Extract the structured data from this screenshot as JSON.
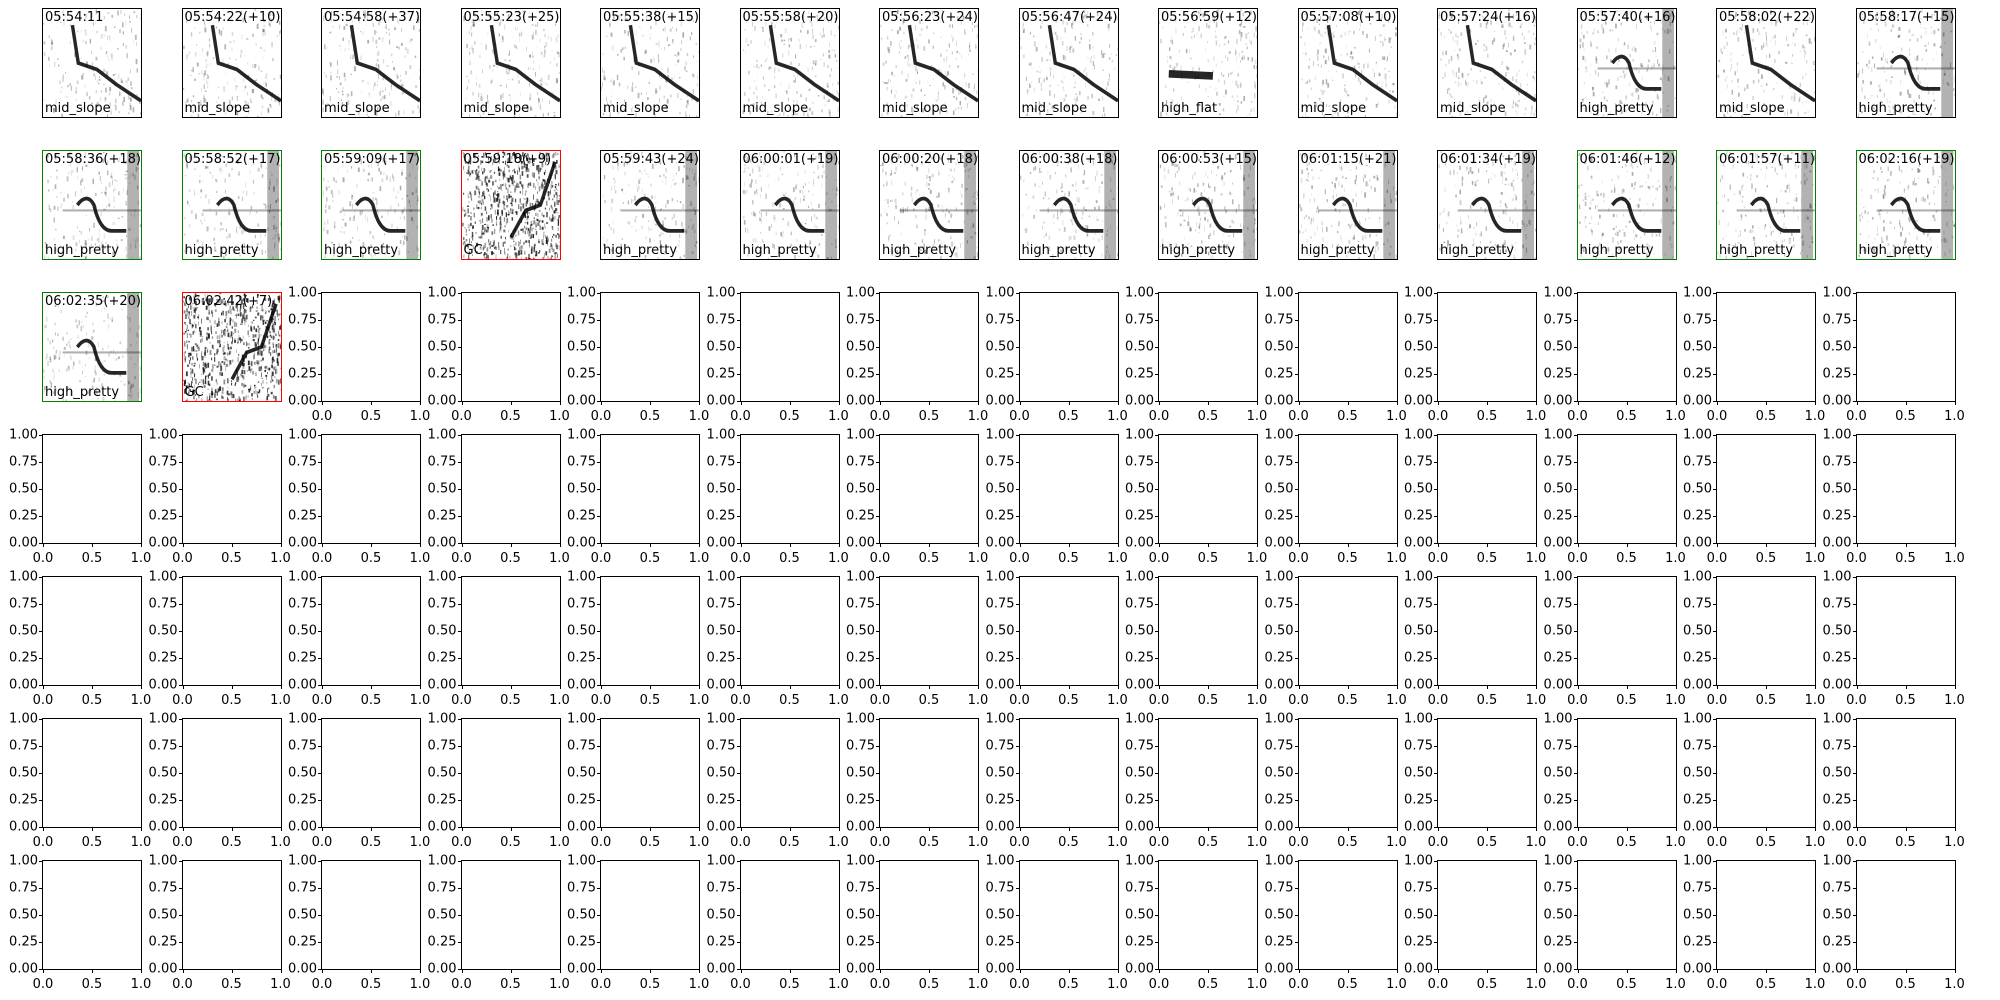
{
  "chart_data": {
    "type": "image-grid",
    "grid": {
      "rows": 7,
      "cols": 14
    },
    "border_colors": {
      "default": "#000000",
      "green": "#008000",
      "red": "#ff0000"
    },
    "panels": [
      {
        "time": "05:54:11",
        "label": "mid_slope",
        "border": "default"
      },
      {
        "time": "05:54:22(+10)",
        "label": "mid_slope",
        "border": "default"
      },
      {
        "time": "05:54:58(+37)",
        "label": "mid_slope",
        "border": "default"
      },
      {
        "time": "05:55:23(+25)",
        "label": "mid_slope",
        "border": "default"
      },
      {
        "time": "05:55:38(+15)",
        "label": "mid_slope",
        "border": "default"
      },
      {
        "time": "05:55:58(+20)",
        "label": "mid_slope",
        "border": "default"
      },
      {
        "time": "05:56:23(+24)",
        "label": "mid_slope",
        "border": "default"
      },
      {
        "time": "05:56:47(+24)",
        "label": "mid_slope",
        "border": "default"
      },
      {
        "time": "05:56:59(+12)",
        "label": "high_flat",
        "border": "default"
      },
      {
        "time": "05:57:08(+10)",
        "label": "mid_slope",
        "border": "default"
      },
      {
        "time": "05:57:24(+16)",
        "label": "mid_slope",
        "border": "default"
      },
      {
        "time": "05:57:40(+16)",
        "label": "high_pretty",
        "border": "default"
      },
      {
        "time": "05:58:02(+22)",
        "label": "mid_slope",
        "border": "default"
      },
      {
        "time": "05:58:17(+15)",
        "label": "high_pretty",
        "border": "default"
      },
      {
        "time": "05:58:36(+18)",
        "label": "high_pretty",
        "border": "green"
      },
      {
        "time": "05:58:52(+17)",
        "label": "high_pretty",
        "border": "green"
      },
      {
        "time": "05:59:09(+17)",
        "label": "high_pretty",
        "border": "green"
      },
      {
        "time": "05:59:18(+9)",
        "label": "GC",
        "border": "red"
      },
      {
        "time": "05:59:43(+24)",
        "label": "high_pretty",
        "border": "default"
      },
      {
        "time": "06:00:01(+19)",
        "label": "high_pretty",
        "border": "default"
      },
      {
        "time": "06:00:20(+18)",
        "label": "high_pretty",
        "border": "default"
      },
      {
        "time": "06:00:38(+18)",
        "label": "high_pretty",
        "border": "default"
      },
      {
        "time": "06:00:53(+15)",
        "label": "high_pretty",
        "border": "default"
      },
      {
        "time": "06:01:15(+21)",
        "label": "high_pretty",
        "border": "default"
      },
      {
        "time": "06:01:34(+19)",
        "label": "high_pretty",
        "border": "default"
      },
      {
        "time": "06:01:46(+12)",
        "label": "high_pretty",
        "border": "green"
      },
      {
        "time": "06:01:57(+11)",
        "label": "high_pretty",
        "border": "green"
      },
      {
        "time": "06:02:16(+19)",
        "label": "high_pretty",
        "border": "green"
      },
      {
        "time": "06:02:35(+20)",
        "label": "high_pretty",
        "border": "green"
      },
      {
        "time": "06:02:42(+7)",
        "label": "GC",
        "border": "red"
      }
    ],
    "empty_axes": {
      "xlim": [
        0,
        1
      ],
      "ylim": [
        0,
        1
      ],
      "xticks": [
        "0.0",
        "0.5",
        "1.0"
      ],
      "yticks": [
        "0.00",
        "0.25",
        "0.50",
        "0.75",
        "1.00"
      ]
    }
  }
}
